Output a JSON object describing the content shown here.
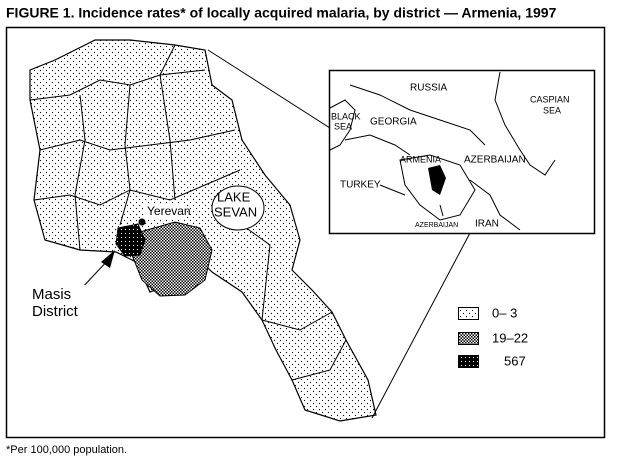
{
  "title": "FIGURE 1. Incidence rates* of locally acquired malaria, by district — Armenia, 1997",
  "map": {
    "city_label": "Yerevan",
    "lake_label": [
      "LAKE",
      "SEVAN"
    ],
    "district_label": [
      "Masis",
      "District"
    ]
  },
  "inset": {
    "labels": [
      "RUSSIA",
      "CASPIAN",
      "SEA",
      "BLACK",
      "SEA",
      "GEORGIA",
      "ARMENIA",
      "AZERBAIJAN",
      "TURKEY",
      "AZERBAIJAN",
      "IRAN"
    ]
  },
  "legend": [
    "0– 3",
    "19–22",
    "567"
  ],
  "footnote": "*Per 100,000 population."
}
